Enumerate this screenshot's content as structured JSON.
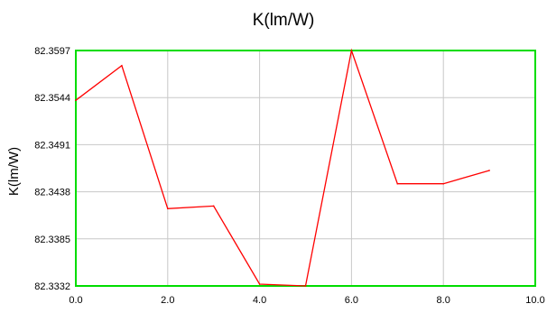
{
  "chart_data": {
    "type": "line",
    "title": "K(lm/W)",
    "xlabel": "",
    "ylabel": "K(lm/W)",
    "xlim": [
      0.0,
      10.0
    ],
    "ylim": [
      82.3332,
      82.3597
    ],
    "xticks": [
      "0.0",
      "2.0",
      "4.0",
      "6.0",
      "8.0",
      "10.0"
    ],
    "yticks": [
      "82.3332",
      "82.3385",
      "82.3438",
      "82.3491",
      "82.3544",
      "82.3597"
    ],
    "grid": true,
    "series": [
      {
        "x": [
          0,
          1,
          2,
          3,
          4,
          5,
          6,
          7,
          8,
          9
        ],
        "values": [
          82.3541,
          82.358,
          82.3419,
          82.3422,
          82.3334,
          82.3332,
          82.3597,
          82.3447,
          82.3447,
          82.3462
        ]
      }
    ],
    "colors": {
      "line": "#ff0000",
      "frame": "#00dd00",
      "grid": "#c8c8c8"
    }
  }
}
